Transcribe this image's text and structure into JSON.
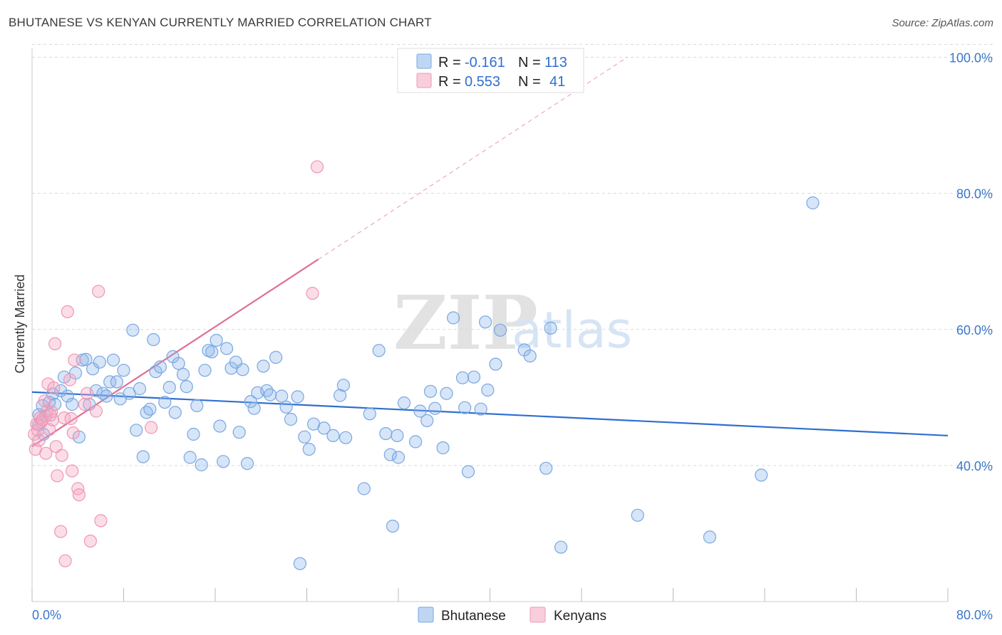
{
  "title": "BHUTANESE VS KENYAN CURRENTLY MARRIED CORRELATION CHART",
  "source": "Source: ZipAtlas.com",
  "watermark": {
    "zip": "ZIP",
    "atlas": "atlas"
  },
  "chart_data": {
    "type": "scatter",
    "title": "BHUTANESE VS KENYAN CURRENTLY MARRIED CORRELATION CHART",
    "xlabel": "",
    "ylabel": "Currently Married",
    "xlim": [
      0,
      80
    ],
    "ylim": [
      20,
      103
    ],
    "x_tick_labels": [
      "0.0%",
      "80.0%"
    ],
    "y_ticks": [
      40,
      60,
      80,
      100
    ],
    "y_tick_labels": [
      "40.0%",
      "60.0%",
      "80.0%",
      "100.0%"
    ],
    "grid": true,
    "legend_position": "top-center",
    "legend": [
      {
        "name": "Bhutanese",
        "r_label": "R =",
        "r": "-0.161",
        "n_label": "N =",
        "n": "113",
        "color": "#8ab4ea"
      },
      {
        "name": "Kenyans",
        "r_label": "R =",
        "r": "0.553",
        "n_label": "N =",
        "n": "41",
        "color": "#f4a6bf"
      }
    ],
    "series": [
      {
        "name": "Bhutanese",
        "color": "#8ab4ea",
        "trend": {
          "x1": 0,
          "y1": 50.8,
          "x2": 80,
          "y2": 44.4,
          "color": "#2f6fd0"
        },
        "points": [
          [
            0.6,
            47.5
          ],
          [
            0.6,
            46
          ],
          [
            0.9,
            48.8
          ],
          [
            1,
            44.6
          ],
          [
            1.2,
            47.3
          ],
          [
            1.5,
            49.3
          ],
          [
            1.8,
            50.5
          ],
          [
            2,
            49
          ],
          [
            2.5,
            51
          ],
          [
            2.8,
            53
          ],
          [
            3.1,
            50.2
          ],
          [
            3.5,
            49
          ],
          [
            3.8,
            53.6
          ],
          [
            4.1,
            44.2
          ],
          [
            4.4,
            55.5
          ],
          [
            4.7,
            55.6
          ],
          [
            5,
            49
          ],
          [
            5.3,
            54.2
          ],
          [
            5.6,
            51
          ],
          [
            5.9,
            55.2
          ],
          [
            6.2,
            50.6
          ],
          [
            6.5,
            50.2
          ],
          [
            6.8,
            52.3
          ],
          [
            7.1,
            55.5
          ],
          [
            7.4,
            52.3
          ],
          [
            7.7,
            49.8
          ],
          [
            8,
            54
          ],
          [
            8.5,
            50.6
          ],
          [
            8.8,
            59.9
          ],
          [
            9.1,
            45.2
          ],
          [
            9.4,
            51.3
          ],
          [
            9.7,
            41.3
          ],
          [
            10,
            47.8
          ],
          [
            10.3,
            48.3
          ],
          [
            10.6,
            58.5
          ],
          [
            10.8,
            53.8
          ],
          [
            11.2,
            54.5
          ],
          [
            11.6,
            49.3
          ],
          [
            12,
            51.5
          ],
          [
            12.3,
            56
          ],
          [
            12.5,
            47.8
          ],
          [
            12.8,
            55
          ],
          [
            13.2,
            53.4
          ],
          [
            13.5,
            51.6
          ],
          [
            13.8,
            41.2
          ],
          [
            14.1,
            44.6
          ],
          [
            14.4,
            48.8
          ],
          [
            14.8,
            40.1
          ],
          [
            15.1,
            54
          ],
          [
            15.4,
            56.9
          ],
          [
            15.7,
            56.7
          ],
          [
            16.1,
            58.4
          ],
          [
            16.4,
            45.8
          ],
          [
            16.7,
            40.6
          ],
          [
            17,
            57.2
          ],
          [
            17.4,
            54.3
          ],
          [
            17.8,
            55.2
          ],
          [
            18.1,
            44.9
          ],
          [
            18.4,
            54.1
          ],
          [
            18.8,
            40.3
          ],
          [
            19.1,
            49.4
          ],
          [
            19.4,
            48.4
          ],
          [
            19.7,
            50.7
          ],
          [
            20.2,
            54.6
          ],
          [
            20.5,
            51
          ],
          [
            20.8,
            50.4
          ],
          [
            21.3,
            55.9
          ],
          [
            21.8,
            50.2
          ],
          [
            22.2,
            48.6
          ],
          [
            22.6,
            46.8
          ],
          [
            23.2,
            50.1
          ],
          [
            23.4,
            25.6
          ],
          [
            23.8,
            44.2
          ],
          [
            24.2,
            42.4
          ],
          [
            24.6,
            46.1
          ],
          [
            25.5,
            45.5
          ],
          [
            26.3,
            44.4
          ],
          [
            26.9,
            50.3
          ],
          [
            27.2,
            51.8
          ],
          [
            27.4,
            44.1
          ],
          [
            29,
            36.6
          ],
          [
            29.5,
            47.6
          ],
          [
            30.3,
            56.9
          ],
          [
            30.9,
            44.7
          ],
          [
            31.3,
            41.6
          ],
          [
            31.5,
            31.1
          ],
          [
            31.9,
            44.4
          ],
          [
            32,
            41.2
          ],
          [
            32.5,
            49.2
          ],
          [
            33.5,
            43.5
          ],
          [
            33.9,
            48
          ],
          [
            34.5,
            46.6
          ],
          [
            34.8,
            50.9
          ],
          [
            35.2,
            48.4
          ],
          [
            35.9,
            42.6
          ],
          [
            36.2,
            50.6
          ],
          [
            36.8,
            61.7
          ],
          [
            37.6,
            52.9
          ],
          [
            37.8,
            48.5
          ],
          [
            38.1,
            39.1
          ],
          [
            38.6,
            53
          ],
          [
            39.2,
            48.3
          ],
          [
            39.6,
            61.1
          ],
          [
            39.8,
            51.1
          ],
          [
            40.5,
            54.9
          ],
          [
            40.9,
            59.9
          ],
          [
            43,
            57
          ],
          [
            43.5,
            56.1
          ],
          [
            44.9,
            39.6
          ],
          [
            45.3,
            60.2
          ],
          [
            46.2,
            28
          ],
          [
            52.9,
            32.7
          ],
          [
            59.2,
            29.5
          ],
          [
            63.7,
            38.6
          ],
          [
            68.2,
            78.6
          ]
        ]
      },
      {
        "name": "Kenyans",
        "color": "#f4a6bf",
        "trend": {
          "x1": 0,
          "y1": 42.8,
          "x2": 25,
          "y2": 70.3,
          "dash_x2": 52,
          "dash_y2": 100,
          "color": "#e06e97"
        },
        "points": [
          [
            0.2,
            44.6
          ],
          [
            0.3,
            42.4
          ],
          [
            0.4,
            46.1
          ],
          [
            0.5,
            45.2
          ],
          [
            0.6,
            43.7
          ],
          [
            0.7,
            47
          ],
          [
            0.8,
            46.4
          ],
          [
            0.9,
            46.8
          ],
          [
            1.1,
            49.5
          ],
          [
            1.2,
            41.8
          ],
          [
            1.3,
            48
          ],
          [
            1.4,
            52
          ],
          [
            1.5,
            45.3
          ],
          [
            1.7,
            47.9
          ],
          [
            1.8,
            46.7
          ],
          [
            1.9,
            51.4
          ],
          [
            2.1,
            42.8
          ],
          [
            2.2,
            38.5
          ],
          [
            2.5,
            30.3
          ],
          [
            2.6,
            41.5
          ],
          [
            2.8,
            47
          ],
          [
            2.9,
            26
          ],
          [
            3.1,
            62.6
          ],
          [
            3.3,
            52.6
          ],
          [
            3.4,
            46.9
          ],
          [
            3.5,
            39.2
          ],
          [
            3.6,
            44.8
          ],
          [
            3.7,
            55.5
          ],
          [
            4,
            36.6
          ],
          [
            4.1,
            35.7
          ],
          [
            4.6,
            49
          ],
          [
            4.8,
            50.6
          ],
          [
            5.1,
            28.9
          ],
          [
            5.6,
            48
          ],
          [
            5.8,
            65.6
          ],
          [
            6,
            31.9
          ],
          [
            10.4,
            45.6
          ],
          [
            24.5,
            65.3
          ],
          [
            24.9,
            83.9
          ],
          [
            2,
            57.9
          ],
          [
            1.6,
            47.4
          ]
        ]
      }
    ]
  }
}
